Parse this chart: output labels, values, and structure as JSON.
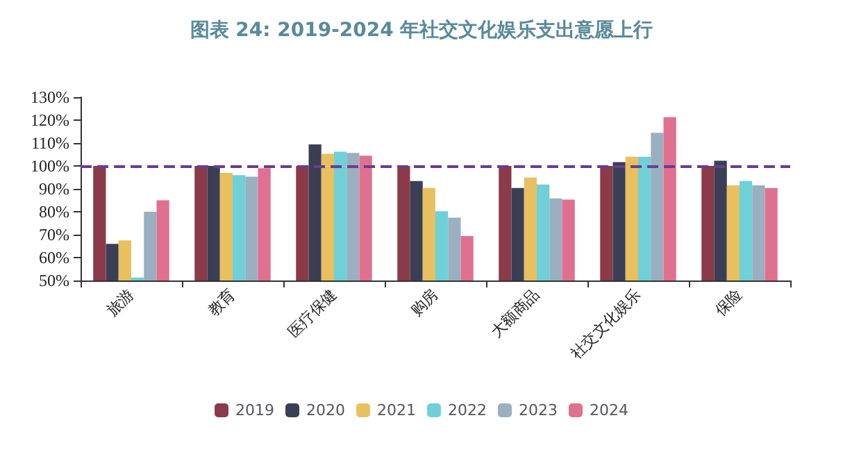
{
  "chart_data": {
    "type": "bar",
    "title": "图表 24: 2019-2024 年社交文化娱乐支出意愿上行",
    "categories": [
      "旅游",
      "教育",
      "医疗保健",
      "购房",
      "大额商品",
      "社交文化娱乐",
      "保险"
    ],
    "series": [
      {
        "name": "2019",
        "color": "#8b3a4a",
        "values": [
          100,
          100,
          100,
          100,
          100,
          100,
          100
        ]
      },
      {
        "name": "2020",
        "color": "#3a3f55",
        "values": [
          66,
          100,
          109.4,
          93.4,
          90.4,
          101.7,
          102.3
        ]
      },
      {
        "name": "2021",
        "color": "#e8c060",
        "values": [
          67.5,
          97,
          105.3,
          90.4,
          94.9,
          104,
          91.5
        ]
      },
      {
        "name": "2022",
        "color": "#6fd0d8",
        "values": [
          51.3,
          96,
          106.2,
          80.2,
          91.9,
          104,
          93.4
        ]
      },
      {
        "name": "2023",
        "color": "#9ab0c0",
        "values": [
          80,
          95.3,
          105.7,
          77.4,
          85.8,
          114.5,
          91.5
        ]
      },
      {
        "name": "2024",
        "color": "#e07090",
        "values": [
          85,
          99,
          104.5,
          69.4,
          85.3,
          121.3,
          90.4
        ]
      }
    ],
    "ylim": [
      50,
      130
    ],
    "yticks": [
      {
        "value": 50,
        "label": "50%"
      },
      {
        "value": 60,
        "label": "60%"
      },
      {
        "value": 70,
        "label": "70%"
      },
      {
        "value": 80,
        "label": "80%"
      },
      {
        "value": 90,
        "label": "90%"
      },
      {
        "value": 100,
        "label": "100%"
      },
      {
        "value": 110,
        "label": "110%"
      },
      {
        "value": 120,
        "label": "120%"
      },
      {
        "value": 130,
        "label": "130%"
      }
    ],
    "ref_lines": [
      {
        "axis": "y",
        "value": 100,
        "color": "#6a3d8f",
        "line_style": "dashed"
      }
    ],
    "grid": false,
    "legend": "bottom"
  }
}
